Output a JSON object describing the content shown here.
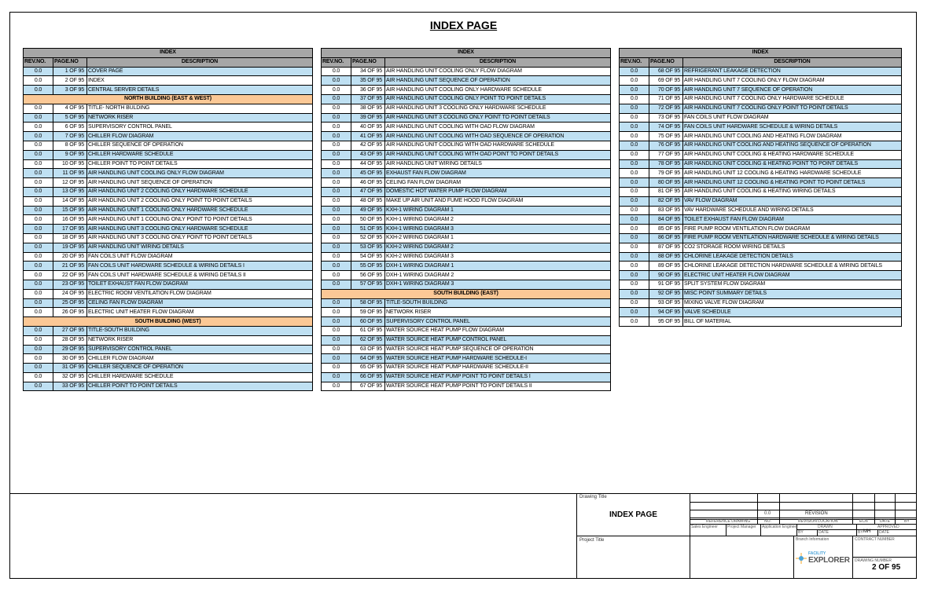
{
  "page_title": "INDEX PAGE",
  "table_headers": {
    "index": "INDEX",
    "rev": "REV.NO.",
    "page": "PAGE.NO",
    "desc": "DESCRIPTION"
  },
  "colors": {
    "header": "#a6a6a6",
    "row_shade": "#bfe0f2",
    "section": "#fbc896"
  },
  "columns": [
    {
      "sections": [
        {
          "title": null,
          "first_shaded": true,
          "rows": [
            [
              "0.0",
              "1 OF 95",
              "COVER PAGE"
            ],
            [
              "0.0",
              "2 OF 95",
              "INDEX"
            ],
            [
              "0.0",
              "3 OF 95",
              "CENTRAL SERVER DETAILS"
            ]
          ]
        },
        {
          "title": "NORTH BUILDING (EAST & WEST)",
          "first_shaded": false,
          "rows": [
            [
              "0.0",
              "4 OF 95",
              "TITLE- NORTH BULDING"
            ],
            [
              "0.0",
              "5 OF 95",
              "NETWORK RISER"
            ],
            [
              "0.0",
              "6 OF 95",
              "SUPERVISORY CONTROL PANEL"
            ],
            [
              "0.0",
              "7 OF 95",
              "CHILLER FLOW DIAGRAM"
            ],
            [
              "0.0",
              "8 OF 95",
              "CHILLER SEQUENCE OF OPERATION"
            ],
            [
              "0.0",
              "9 OF 95",
              "CHILLER HARDWARE SCHEDULE"
            ],
            [
              "0.0",
              "10 OF 95",
              "CHILLER POINT TO POINT DETAILS"
            ],
            [
              "0.0",
              "11 OF 95",
              "AIR HANDLING UNIT COOLING ONLY FLOW DIAGRAM"
            ],
            [
              "0.0",
              "12 OF 95",
              "AIR HANDLING UNIT SEQUENCE OF OPERATION"
            ],
            [
              "0.0",
              "13 OF 95",
              "AIR HANDLING UNIT 2 COOLING ONLY HARDWARE SCHEDULE"
            ],
            [
              "0.0",
              "14 OF 95",
              "AIR HANDLING UNIT 2 COOLING ONLY POINT TO POINT DETAILS"
            ],
            [
              "0.0",
              "15 OF 95",
              "AIR HANDLING UNIT 1 COOLING ONLY HARDWARE SCHEDULE"
            ],
            [
              "0.0",
              "16 OF 95",
              "AIR HANDLING UNIT 1 COOLING ONLY POINT TO POINT DETAILS"
            ],
            [
              "0.0",
              "17 OF 95",
              "AIR HANDLING UNIT 3 COOLING ONLY HARDWARE SCHEDULE"
            ],
            [
              "0.0",
              "18 OF 95",
              "AIR HANDLING UNIT 3 COOLING ONLY POINT TO POINT DETAILS"
            ],
            [
              "0.0",
              "19 OF 95",
              "AIR HANDLING UNIT WIRING DETAILS"
            ],
            [
              "0.0",
              "20 OF 95",
              "FAN COILS UNIT FLOW DIAGRAM"
            ],
            [
              "0.0",
              "21 OF 95",
              "FAN COILS UNIT HARDWARE SCHEDULE & WIRING DETAILS I"
            ],
            [
              "0.0",
              "22 OF 95",
              "FAN COILS UNIT HARDWARE SCHEDULE & WIRING DETAILS II"
            ],
            [
              "0.0",
              "23 OF 95",
              "TOILET EXHAUST FAN FLOW DIAGRAM"
            ],
            [
              "0.0",
              "24 OF 95",
              "ELECTRIC ROOM VENTILATION FLOW DIAGRAM"
            ],
            [
              "0.0",
              "25 OF 95",
              "CELING FAN FLOW DIAGRAM"
            ],
            [
              "0.0",
              "26 OF 95",
              "ELECTRIC UNIT HEATER FLOW DIAGRAM"
            ]
          ]
        },
        {
          "title": "SOUTH BUILDING (WEST)",
          "first_shaded": true,
          "rows": [
            [
              "0.0",
              "27 OF 95",
              "TITLE-SOUTH BUILDING"
            ],
            [
              "0.0",
              "28 OF 95",
              "NETWORK RISER"
            ],
            [
              "0.0",
              "29 OF 95",
              "SUPERVISORY CONTROL PANEL"
            ],
            [
              "0.0",
              "30 OF 95",
              "CHILLER FLOW DIAGRAM"
            ],
            [
              "0.0",
              "31 OF 95",
              "CHILLER SEQUENCE OF OPERATION"
            ],
            [
              "0.0",
              "32 OF 95",
              "CHILLER HARDWARE SCHEDULE"
            ],
            [
              "0.0",
              "33 OF 95",
              "CHILLER POINT TO POINT DETAILS"
            ]
          ]
        }
      ]
    },
    {
      "sections": [
        {
          "title": null,
          "first_shaded": false,
          "rows": [
            [
              "0.0",
              "34 OF 95",
              "AIR HANDLING UNIT COOLING ONLY FLOW DIAGRAM"
            ],
            [
              "0.0",
              "35 OF 95",
              "AIR HANDLING UNIT SEQUENCE OF OPERATION"
            ],
            [
              "0.0",
              "36 OF 95",
              "AIR HANDLING UNIT COOLING ONLY HARDWARE SCHEDULE"
            ],
            [
              "0.0",
              "37 OF 95",
              "AIR HANDLING UNIT COOLING ONLY POINT TO POINT DETAILS"
            ],
            [
              "0.0",
              "38 OF 95",
              "AIR HANDLING UNIT 3 COOLING ONLY HARDWARE SCHEDULE"
            ],
            [
              "0.0",
              "39 OF 95",
              "AIR HANDLING UNIT 3 COOLING ONLY POINT TO POINT DETAILS"
            ],
            [
              "0.0",
              "40 OF 95",
              "AIR HANDLING  UNIT COOLING WITH OAD FLOW DIAGRAM"
            ],
            [
              "0.0",
              "41 OF 95",
              "AIR HANDLING UNIT COOLING WITH OAD SEQUENCE OF OPERATION"
            ],
            [
              "0.0",
              "42 OF 95",
              "AIR HANDLING UNIT COOLING WITH OAD HARDWARE SCHEDULE"
            ],
            [
              "0.0",
              "43 OF 95",
              "AIR HANDLING UNIT COOLING WITH OAD POINT TO POINT DETAILS"
            ],
            [
              "0.0",
              "44 OF 95",
              "AIR HANDLING UNIT WIRING DETAILS"
            ],
            [
              "0.0",
              "45 OF 95",
              "EXHAUST FAN FLOW DIAGRAM"
            ],
            [
              "0.0",
              "46 OF 95",
              "CELING FAN FLOW DIAGRAM"
            ],
            [
              "0.0",
              "47 OF 95",
              "DOMESTIC HOT WATER PUMP FLOW DIAGRAM"
            ],
            [
              "0.0",
              "48 OF 95",
              "MAKE UP AIR UNIT AND FUME HOOD FLOW DIAGRAM"
            ],
            [
              "0.0",
              "49 OF 95",
              "KXH-1 WIRING DIAGRAM 1"
            ],
            [
              "0.0",
              "50 OF 95",
              "KXH-1 WIRING DIAGRAM 2"
            ],
            [
              "0.0",
              "51 OF 95",
              "KXH-1 WIRING DIAGRAM 3"
            ],
            [
              "0.0",
              "52 OF 95",
              "KXH-2 WIRING DIAGRAM 1"
            ],
            [
              "0.0",
              "53 OF 95",
              "KXH-2 WIRING DIAGRAM 2"
            ],
            [
              "0.0",
              "54 OF 95",
              "KXH-2 WIRING DIAGRAM 3"
            ],
            [
              "0.0",
              "55 OF 95",
              "DXH-1 WIRING DIAGRAM 1"
            ],
            [
              "0.0",
              "56 OF 95",
              "DXH-1 WIRING DIAGRAM 2"
            ],
            [
              "0.0",
              "57 OF 95",
              "DXH-1 WIRING DIAGRAM 3"
            ]
          ]
        },
        {
          "title": "SOUTH BUILDING (EAST)",
          "first_shaded": true,
          "rows": [
            [
              "0.0",
              "58 OF 95",
              "TITLE-SOUTH BUILDING"
            ],
            [
              "0.0",
              "59 OF 95",
              "NETWORK RISER"
            ],
            [
              "0.0",
              "60 OF 95",
              "SUPERVISORY CONTROL PANEL"
            ],
            [
              "0.0",
              "61 OF 95",
              "WATER SOURCE HEAT PUMP FLOW DIAGRAM"
            ],
            [
              "0.0",
              "62 OF 95",
              "WATER SOURCE HEAT PUMP CONTROL PANEL"
            ],
            [
              "0.0",
              "63 OF 95",
              "WATER SOURCE HEAT PUMP SEQUENCE OF OPERATION"
            ],
            [
              "0.0",
              "64 OF 95",
              "WATER SOURCE HEAT PUMP HARDWARE SCHEDULE-I"
            ],
            [
              "0.0",
              "65 OF 95",
              "WATER SOURCE HEAT PUMP HARDWARE SCHEDULE-II"
            ],
            [
              "0.0",
              "66 OF 95",
              "WATER SOURCE HEAT PUMP POINT TO POINT DETAILS I"
            ],
            [
              "0.0",
              "67 OF 95",
              "WATER SOURCE HEAT PUMP POINT TO POINT DETAILS II"
            ]
          ]
        }
      ]
    },
    {
      "sections": [
        {
          "title": null,
          "first_shaded": true,
          "rows": [
            [
              "0.0",
              "68 OF 95",
              "REFRIGERANT LEAKAGE DETECTION"
            ],
            [
              "0.0",
              "69 OF 95",
              "AIR HANDLING UNIT 7 COOLING ONLY FLOW DIAGRAM"
            ],
            [
              "0.0",
              "70 OF 95",
              "AIR HANDLING UNIT 7 SEQUENCE OF OPERATION"
            ],
            [
              "0.0",
              "71 OF 95",
              "AIR HANDLING UNIT 7 COOLING ONLY HARDWARE SCHEDULE"
            ],
            [
              "0.0",
              "72 OF 95",
              "AIR HANDLING UNIT 7 COOLING ONLY POINT TO POINT DETAILS"
            ],
            [
              "0.0",
              "73 OF 95",
              "FAN COILS UNIT FLOW DIAGRAM"
            ],
            [
              "0.0",
              "74 OF 95",
              "FAN COILS UNIT HARDWARE SCHEDULE & WIRING DETAILS"
            ],
            [
              "0.0",
              "75 OF 95",
              "AIR HANDLING UNIT COOLING AND HEATING FLOW DIAGRAM"
            ],
            [
              "0.0",
              "76 OF 95",
              "AIR HANDLING UNIT COOLING AND HEATING SEQUENCE OF OPERATION"
            ],
            [
              "0.0",
              "77 OF 95",
              "AIR HANDLING UNIT COOLING & HEATING HARDWARE SCHEDULE"
            ],
            [
              "0.0",
              "78 OF 95",
              "AIR HANDLING UNIT COOLING & HEATING POINT TO POINT DETAILS"
            ],
            [
              "0.0",
              "79 OF 95",
              "AIR HANDLING UNIT 12 COOLING & HEATING HARDWARE SCHEDULE"
            ],
            [
              "0.0",
              "80 OF 95",
              "AIR HANDLING UNIT 12 COOLING & HEATING POINT TO POINT DETAILS"
            ],
            [
              "0.0",
              "81 OF 95",
              "AIR HANDLING UNIT COOLING & HEATING WIRING DETAILS"
            ],
            [
              "0.0",
              "82 OF 95",
              "VAV FLOW DIAGRAM"
            ],
            [
              "0.0",
              "83 OF 95",
              "VAV HARDWARE SCHEDULE AND WIRING DETAILS"
            ],
            [
              "0.0",
              "84 OF 95",
              "TOILET EXHAUST FAN FLOW DIAGRAM"
            ],
            [
              "0.0",
              "85 OF 95",
              "FIRE PUMP ROOM VENTILATION FLOW DIAGRAM"
            ],
            [
              "0.0",
              "86 OF 95",
              "FIRE PUMP ROOM VENTILATION HARDWARE SCHEDULE & WIRING DETAILS"
            ],
            [
              "0.0",
              "87 OF 95",
              "CO2 STORAGE ROOM WIRING DETAILS"
            ],
            [
              "0.0",
              "88 OF 95",
              "CHLORINE LEAKAGE DETECTION DETAILS"
            ],
            [
              "0.0",
              "89 OF 95",
              "CHLORINE LEAKAGE DETECTION HARDWARE SCHEDULE & WIRING DETAILS"
            ],
            [
              "0.0",
              "90 OF 95",
              "ELECTRIC UNIT HEATER FLOW DIAGRAM"
            ],
            [
              "0.0",
              "91 OF 95",
              "SPLIT SYSTEM FLOW DIAGRAM"
            ],
            [
              "0.0",
              "92 OF 95",
              "MISC POINT SUMMARY DETAILS"
            ],
            [
              "0.0",
              "93 OF 95",
              "MIXING VALVE FLOW DIAGRAM"
            ],
            [
              "0.0",
              "94 OF 95",
              "VALVE SCHEDULE"
            ],
            [
              "0.0",
              "95 OF 95",
              "BILL OF MATERIAL"
            ]
          ]
        }
      ]
    }
  ],
  "title_block": {
    "drawing_title_label": "Drawing Title",
    "drawing_title": "INDEX PAGE",
    "project_title_label": "Project Title",
    "revision_no": "0.0",
    "revision_label": "REVISION",
    "reference_drawing": "REFERENCE DRAWING",
    "no": "NO.",
    "revision_location": "REVISION LOCATION",
    "ecn": "ECN",
    "date": "DATE",
    "by": "BY",
    "sales_engineer": "Sales Engineer",
    "project_manager": "Project Manager",
    "application_engineer": "Application Engineer",
    "drawn": "DRAWN",
    "approved": "APPROVED",
    "by_short": "BY",
    "date_short": "DATE",
    "approved_by": "MH",
    "branch_information": "Branch Information",
    "contract_number": "CONTRACT NUMBER",
    "drawing_number_label": "DRAWING NUMBER",
    "drawing_number": "2 OF 95",
    "logo_top": "FACILITY",
    "logo_bottom": "EXPLORER"
  }
}
